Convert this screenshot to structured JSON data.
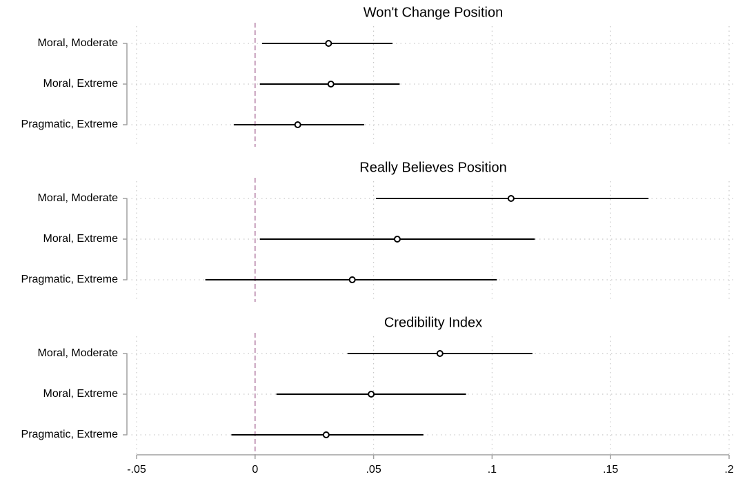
{
  "chart_data": {
    "type": "coefficient-plot",
    "x_ticks": [
      -0.05,
      0,
      0.05,
      0.1,
      0.15,
      0.2
    ],
    "x_tick_labels": [
      "-.05",
      "0",
      ".05",
      ".1",
      ".15",
      ".2"
    ],
    "xlim": [
      -0.05,
      0.2
    ],
    "reference_line": 0,
    "reference_line_color": "#b07aa1",
    "grid": "dotted",
    "panels": [
      {
        "title": "Won't Change Position",
        "rows": [
          {
            "label": "Moral, Moderate",
            "estimate": 0.031,
            "ci_low": 0.003,
            "ci_high": 0.058
          },
          {
            "label": "Moral, Extreme",
            "estimate": 0.032,
            "ci_low": 0.002,
            "ci_high": 0.061
          },
          {
            "label": "Pragmatic, Extreme",
            "estimate": 0.018,
            "ci_low": -0.009,
            "ci_high": 0.046
          }
        ]
      },
      {
        "title": "Really Believes Position",
        "rows": [
          {
            "label": "Moral, Moderate",
            "estimate": 0.108,
            "ci_low": 0.051,
            "ci_high": 0.166
          },
          {
            "label": "Moral, Extreme",
            "estimate": 0.06,
            "ci_low": 0.002,
            "ci_high": 0.118
          },
          {
            "label": "Pragmatic, Extreme",
            "estimate": 0.041,
            "ci_low": -0.021,
            "ci_high": 0.102
          }
        ]
      },
      {
        "title": "Credibility Index",
        "rows": [
          {
            "label": "Moral, Moderate",
            "estimate": 0.078,
            "ci_low": 0.039,
            "ci_high": 0.117
          },
          {
            "label": "Moral, Extreme",
            "estimate": 0.049,
            "ci_low": 0.009,
            "ci_high": 0.089
          },
          {
            "label": "Pragmatic, Extreme",
            "estimate": 0.03,
            "ci_low": -0.01,
            "ci_high": 0.071
          }
        ]
      }
    ]
  }
}
